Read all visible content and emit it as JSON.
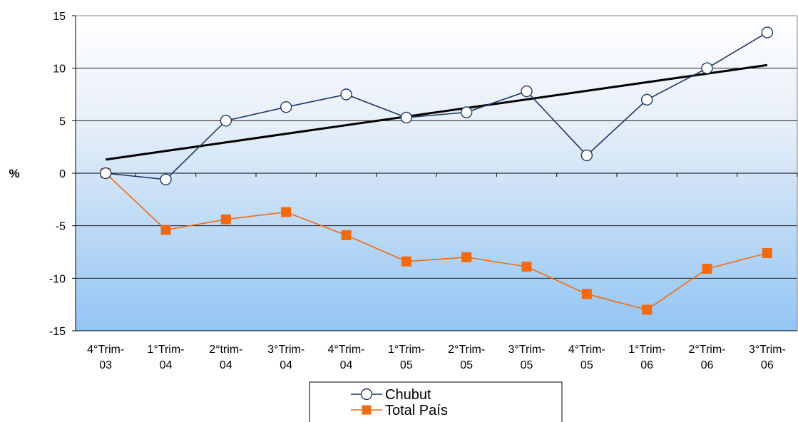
{
  "chart_data": {
    "type": "line",
    "title": "",
    "xlabel": "",
    "ylabel": "%",
    "ylim": [
      -15,
      15
    ],
    "yticks": [
      15,
      10,
      5,
      0,
      -5,
      -10,
      -15
    ],
    "grid": true,
    "legend_position": "bottom",
    "categories": [
      [
        "4°Trim-",
        "03"
      ],
      [
        "1°Trim-",
        "04"
      ],
      [
        "2°trim-",
        "04"
      ],
      [
        "3°Trim-",
        "04"
      ],
      [
        "4°Trim-",
        "04"
      ],
      [
        "1°Trim-",
        "05"
      ],
      [
        "2°Trim-",
        "05"
      ],
      [
        "3°Trim-",
        "05"
      ],
      [
        "4°Trim-",
        "05"
      ],
      [
        "1°Trim-",
        "06"
      ],
      [
        "2°Trim-",
        "06"
      ],
      [
        "3°Trim-",
        "06"
      ]
    ],
    "series": [
      {
        "name": "Chubut",
        "color": "#1f3864",
        "marker": "circle",
        "values": [
          0.0,
          -0.6,
          5.0,
          6.3,
          7.5,
          5.3,
          5.8,
          7.8,
          1.7,
          7.0,
          10.0,
          13.4
        ]
      },
      {
        "name": "Total País",
        "color": "#f26a10",
        "marker": "square",
        "values": [
          0.0,
          -5.4,
          -4.4,
          -3.7,
          -5.9,
          -8.4,
          -8.0,
          -8.9,
          -11.5,
          -13.0,
          -9.1,
          -7.6
        ]
      }
    ],
    "trendline": {
      "color": "#000000",
      "start": 1.3,
      "end": 10.3
    }
  }
}
